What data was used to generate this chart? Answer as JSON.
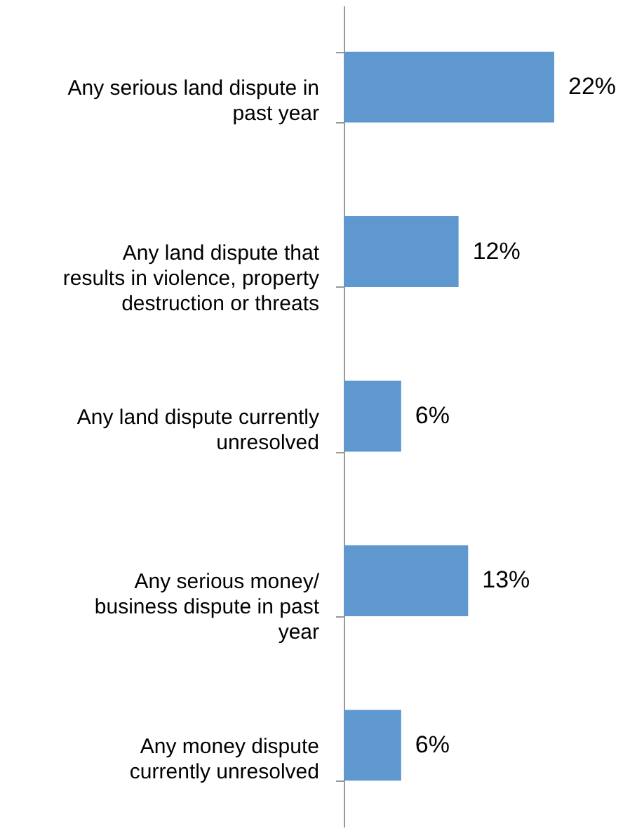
{
  "chart_data": {
    "type": "bar",
    "orientation": "horizontal",
    "categories": [
      "Any serious land dispute in past year",
      "Any land dispute that results in violence, property destruction or threats",
      "Any land dispute currently unresolved",
      "Any serious money/ business dispute in past year",
      "Any money dispute currently unresolved"
    ],
    "values": [
      22,
      12,
      6,
      13,
      6
    ],
    "value_labels": [
      "22%",
      "12%",
      "6%",
      "13%",
      "6%"
    ],
    "color": "#5f97cf"
  }
}
